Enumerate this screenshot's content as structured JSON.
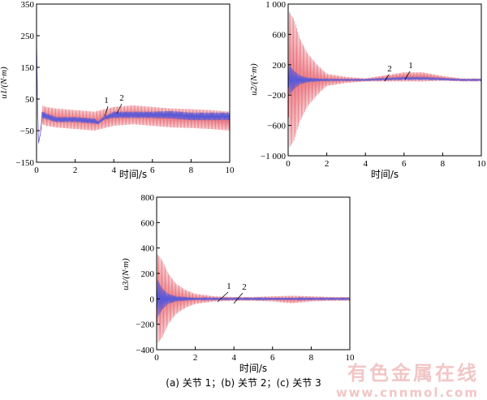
{
  "caption": "(a)  关节 1；(b)  关节 2；(c)  关节 3",
  "watermark": {
    "text": "有色金属在线",
    "url": "www.cnnmol.com"
  },
  "colors": {
    "series1": "#e8707a",
    "series2": "#5a5ad8",
    "axis": "#000000"
  },
  "chart_data": [
    {
      "type": "line",
      "panel": "a",
      "title": "",
      "xlabel": "时间/s",
      "ylabel": "u1/(N·m)",
      "xlim": [
        0,
        10
      ],
      "ylim": [
        -150,
        350
      ],
      "xticks": [
        "0",
        "2",
        "4",
        "6",
        "8",
        "10"
      ],
      "yticks": [
        "350",
        "250",
        "150",
        "50",
        "−50",
        "−150"
      ],
      "grid": false,
      "annotations": [
        "1",
        "2"
      ],
      "series": [
        {
          "name": "1",
          "x": [
            0,
            0.05,
            0.1,
            0.2,
            0.3,
            0.5,
            1,
            2,
            3,
            4,
            5,
            6,
            7,
            8,
            9,
            10
          ],
          "center": [
            240,
            50,
            -90,
            -60,
            0,
            -5,
            -10,
            -15,
            -20,
            -5,
            0,
            -5,
            -10,
            -12,
            -15,
            -20
          ],
          "amplitude": [
            0,
            0,
            0,
            5,
            30,
            30,
            30,
            30,
            30,
            30,
            30,
            30,
            30,
            30,
            30,
            30
          ]
        },
        {
          "name": "2",
          "x": [
            0,
            0.05,
            0.1,
            0.2,
            0.3,
            1,
            2,
            3,
            3.2,
            3.5,
            4,
            5,
            6,
            7,
            8,
            9,
            10
          ],
          "center": [
            240,
            50,
            -90,
            -60,
            0,
            -15,
            -15,
            -20,
            -25,
            -10,
            0,
            0,
            0,
            0,
            -5,
            -5,
            -5
          ],
          "amplitude": [
            0,
            0,
            0,
            0,
            10,
            8,
            8,
            8,
            5,
            5,
            10,
            10,
            10,
            12,
            12,
            12,
            12
          ]
        }
      ]
    },
    {
      "type": "line",
      "panel": "b",
      "title": "",
      "xlabel": "时间/s",
      "ylabel": "u2/(N·m)",
      "xlim": [
        0,
        10
      ],
      "ylim": [
        -1000,
        1000
      ],
      "xticks": [
        "0",
        "2",
        "4",
        "6",
        "8",
        "10"
      ],
      "yticks": [
        "1 000",
        "600",
        "200",
        "−200",
        "−600",
        "−1 000"
      ],
      "grid": false,
      "annotations": [
        "2",
        "1"
      ],
      "series": [
        {
          "name": "1",
          "x": [
            0,
            0.05,
            0.3,
            0.6,
            1,
            1.5,
            2,
            3,
            4,
            5,
            6,
            7,
            8,
            9,
            10
          ],
          "center": [
            0,
            0,
            0,
            0,
            0,
            0,
            0,
            0,
            0,
            20,
            40,
            40,
            20,
            0,
            0
          ],
          "amplitude": [
            0,
            900,
            800,
            550,
            350,
            200,
            80,
            40,
            20,
            40,
            60,
            60,
            30,
            20,
            20
          ]
        },
        {
          "name": "2",
          "x": [
            0,
            0.05,
            0.3,
            0.6,
            1,
            2,
            3,
            4,
            5,
            6,
            7,
            8,
            9,
            10
          ],
          "center": [
            0,
            0,
            0,
            0,
            0,
            0,
            0,
            0,
            10,
            20,
            20,
            10,
            0,
            0
          ],
          "amplitude": [
            0,
            200,
            120,
            60,
            30,
            10,
            8,
            8,
            10,
            12,
            12,
            10,
            8,
            8
          ]
        }
      ]
    },
    {
      "type": "line",
      "panel": "c",
      "title": "",
      "xlabel": "时间/s",
      "ylabel": "u3/(N·m)",
      "xlim": [
        0,
        10
      ],
      "ylim": [
        -400,
        800
      ],
      "xticks": [
        "0",
        "2",
        "4",
        "6",
        "8",
        "10"
      ],
      "yticks": [
        "800",
        "600",
        "400",
        "200",
        "0",
        "−200",
        "−400"
      ],
      "grid": false,
      "annotations": [
        "1",
        "2"
      ],
      "series": [
        {
          "name": "1",
          "x": [
            0,
            0.05,
            0.3,
            0.6,
            1,
            1.5,
            2,
            3,
            4,
            5,
            6,
            7,
            8,
            9,
            10
          ],
          "center": [
            0,
            0,
            0,
            0,
            0,
            0,
            0,
            0,
            0,
            0,
            0,
            -5,
            0,
            0,
            0
          ],
          "amplitude": [
            0,
            350,
            300,
            200,
            120,
            70,
            40,
            20,
            15,
            15,
            20,
            30,
            20,
            15,
            15
          ]
        },
        {
          "name": "2",
          "x": [
            0,
            0.05,
            0.3,
            0.6,
            1,
            2,
            3,
            4,
            5,
            6,
            7,
            8,
            9,
            10
          ],
          "center": [
            0,
            0,
            0,
            0,
            0,
            0,
            0,
            0,
            0,
            0,
            0,
            0,
            0,
            0
          ],
          "amplitude": [
            0,
            150,
            80,
            40,
            20,
            8,
            6,
            6,
            6,
            8,
            8,
            6,
            6,
            6
          ]
        }
      ]
    }
  ]
}
